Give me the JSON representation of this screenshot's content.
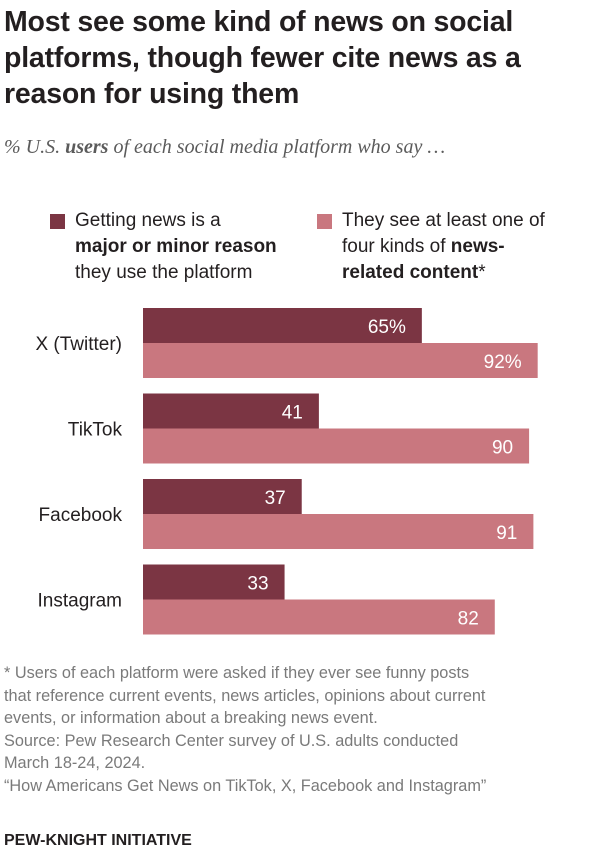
{
  "title": "Most see some kind of news on social platforms, though fewer cite news as a reason for using them",
  "subtitle": {
    "prefix": "% U.S. ",
    "emphasis": "users",
    "suffix": " of each social media platform who say …"
  },
  "legend": [
    {
      "color": "#7b3543",
      "line1": "Getting news is a",
      "line2_bold": "major or minor reason",
      "line3": "they use the platform"
    },
    {
      "color": "#c9777f",
      "line1": "They see at least one of",
      "line2_plain": "four kinds of ",
      "line2_bold": "news-",
      "line3_bold": "related content",
      "line3_plain": "*"
    }
  ],
  "chart_data": {
    "type": "bar",
    "orientation": "horizontal",
    "categories": [
      "X (Twitter)",
      "TikTok",
      "Facebook",
      "Instagram"
    ],
    "series": [
      {
        "name": "Getting news is a major or minor reason they use the platform",
        "values": [
          65,
          41,
          37,
          33
        ],
        "labels": [
          "65%",
          "41",
          "37",
          "33"
        ],
        "color": "#7b3543"
      },
      {
        "name": "They see at least one of four kinds of news-related content*",
        "values": [
          92,
          90,
          91,
          82
        ],
        "labels": [
          "92%",
          "90",
          "91",
          "82"
        ],
        "color": "#c9777f"
      }
    ],
    "xlim": [
      0,
      100
    ],
    "grid": false,
    "legend_position": "top"
  },
  "footnote": [
    "* Users of each platform were asked if they ever see funny posts",
    "that reference current events, news articles, opinions about current",
    "events, or information about a breaking news event.",
    "Source: Pew Research Center survey of U.S. adults conducted",
    "March 18-24, 2024.",
    "“How Americans Get News on TikTok, X, Facebook and Instagram”"
  ],
  "brand": "PEW-KNIGHT INITIATIVE"
}
